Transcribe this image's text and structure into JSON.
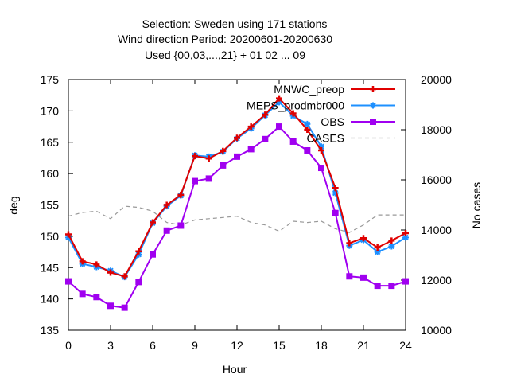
{
  "chart_data": {
    "type": "line",
    "title_lines": [
      "Selection: Sweden using   171 stations",
      "Wind direction   Period: 20200601-20200630",
      "Used {00,03,...,21} + 01 02 ... 09"
    ],
    "xlabel": "Hour",
    "ylabel": "deg",
    "y2label": "No cases",
    "xlim": [
      0,
      24
    ],
    "ylim": [
      135,
      175
    ],
    "y2lim": [
      10000,
      20000
    ],
    "xticks": [
      0,
      3,
      6,
      9,
      12,
      15,
      18,
      21,
      24
    ],
    "yticks": [
      135,
      140,
      145,
      150,
      155,
      160,
      165,
      170,
      175
    ],
    "y2ticks": [
      10000,
      12000,
      14000,
      16000,
      18000,
      20000
    ],
    "grid": false,
    "legend_position": "top-right",
    "x": [
      0,
      1,
      2,
      3,
      4,
      5,
      6,
      7,
      8,
      9,
      10,
      11,
      12,
      13,
      14,
      15,
      16,
      17,
      18,
      19,
      20,
      21,
      22,
      23,
      24
    ],
    "series": [
      {
        "name": "MNWC_preop",
        "color": "#e00000",
        "marker": "plus",
        "axis": "y",
        "values": [
          150.3,
          146.0,
          145.5,
          144.2,
          143.6,
          147.6,
          152.2,
          155.0,
          156.6,
          162.8,
          162.4,
          163.6,
          165.7,
          167.5,
          169.4,
          172.0,
          169.6,
          167.0,
          163.7,
          157.7,
          148.9,
          149.7,
          148.2,
          149.3,
          150.5
        ]
      },
      {
        "name": "MEPS_prodmbr000",
        "color": "#1e90ff",
        "marker": "star",
        "axis": "y",
        "values": [
          149.8,
          145.6,
          145.1,
          144.5,
          143.5,
          147.1,
          152.1,
          154.8,
          156.5,
          162.9,
          162.7,
          163.5,
          165.6,
          167.2,
          169.3,
          171.4,
          169.2,
          167.9,
          164.3,
          156.9,
          148.5,
          149.4,
          147.5,
          148.4,
          149.8
        ]
      },
      {
        "name": "OBS",
        "color": "#a000f0",
        "marker": "square",
        "axis": "y",
        "values": [
          142.8,
          140.8,
          140.3,
          138.9,
          138.6,
          142.7,
          147.1,
          150.9,
          151.7,
          158.8,
          159.2,
          161.3,
          162.7,
          163.9,
          165.5,
          167.5,
          165.1,
          163.7,
          160.9,
          153.7,
          143.6,
          143.4,
          142.1,
          142.1,
          142.8
        ]
      },
      {
        "name": "CASES",
        "color": "#999999",
        "dash": true,
        "axis": "y2",
        "values": [
          14550,
          14700,
          14750,
          14450,
          14950,
          14900,
          14750,
          14300,
          14200,
          14400,
          14450,
          14500,
          14550,
          14300,
          14200,
          13950,
          14350,
          14300,
          14350,
          14050,
          13900,
          14200,
          14600,
          14600,
          14600
        ]
      }
    ]
  }
}
